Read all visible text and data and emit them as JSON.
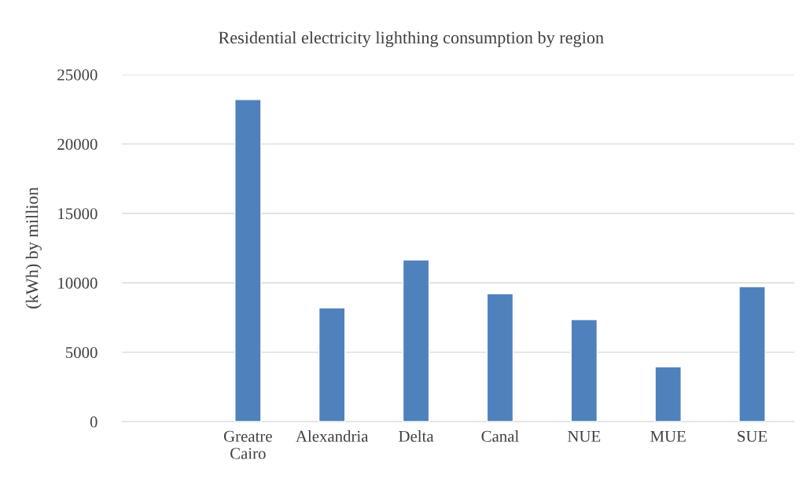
{
  "chart_data": {
    "type": "bar",
    "title": "Residential electricity lighthing consumption by region",
    "ylabel": "(kWh) by million",
    "categories": [
      null,
      "Greatre\nCairo",
      "Alexandria",
      "Delta",
      "Canal",
      "NUE",
      "MUE",
      "SUE"
    ],
    "values": [
      null,
      23200,
      8200,
      11650,
      9220,
      7350,
      3950,
      9730
    ],
    "color": "#4f81bd",
    "ylim": [
      0,
      25000
    ],
    "yticks": [
      0,
      5000,
      10000,
      15000,
      20000,
      25000
    ],
    "grid": "y",
    "legend": false
  }
}
